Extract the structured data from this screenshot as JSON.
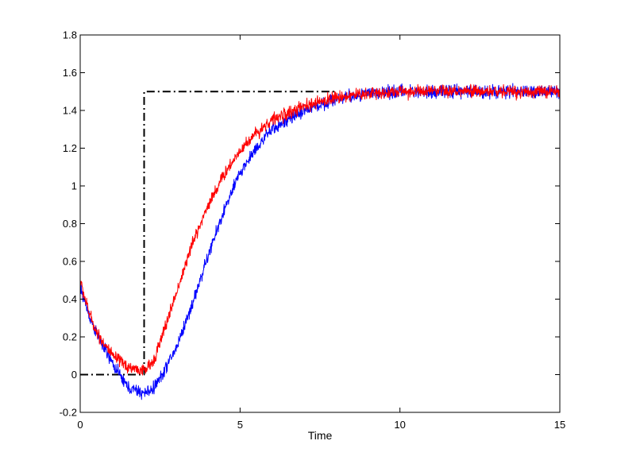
{
  "chart_data": {
    "type": "line",
    "title": "",
    "xlabel": "Time",
    "ylabel": "",
    "xlim": [
      0,
      15
    ],
    "ylim": [
      -0.2,
      1.8
    ],
    "xticks": [
      0,
      5,
      10,
      15
    ],
    "xtick_labels": [
      "0",
      "5",
      "10",
      "15"
    ],
    "yticks": [
      -0.2,
      0,
      0.2,
      0.4,
      0.6,
      0.8,
      1,
      1.2,
      1.4,
      1.6,
      1.8
    ],
    "ytick_labels": [
      "-0.2",
      "0",
      "0.2",
      "0.4",
      "0.6",
      "0.8",
      "1",
      "1.2",
      "1.4",
      "1.6",
      "1.8"
    ],
    "grid": false,
    "series": [
      {
        "color": "#000000",
        "style": "dash-dot",
        "x": [
          0,
          2,
          2,
          8
        ],
        "y": [
          0,
          0,
          1.5,
          1.5
        ]
      },
      {
        "color": "#0000ff",
        "style": "noisy",
        "noise_amplitude": 0.03,
        "x": [
          0,
          0.25,
          0.5,
          1.0,
          1.5,
          2.0,
          2.25,
          2.5,
          3.0,
          3.5,
          4.0,
          4.5,
          5.0,
          5.5,
          6.0,
          7.0,
          8.0,
          9.0,
          10.0,
          12.0,
          15.0
        ],
        "y": [
          0.46,
          0.33,
          0.22,
          0.06,
          -0.07,
          -0.1,
          -0.08,
          -0.02,
          0.14,
          0.37,
          0.63,
          0.87,
          1.07,
          1.2,
          1.3,
          1.4,
          1.46,
          1.49,
          1.5,
          1.5,
          1.5
        ]
      },
      {
        "color": "#ff0000",
        "style": "noisy",
        "noise_amplitude": 0.03,
        "x": [
          0,
          0.25,
          0.5,
          1.0,
          1.5,
          2.0,
          2.25,
          2.5,
          3.0,
          3.5,
          4.0,
          4.5,
          5.0,
          5.5,
          6.0,
          7.0,
          8.0,
          9.0,
          10.0,
          12.0,
          15.0
        ],
        "y": [
          0.5,
          0.34,
          0.23,
          0.1,
          0.04,
          0.02,
          0.06,
          0.17,
          0.43,
          0.69,
          0.9,
          1.06,
          1.19,
          1.28,
          1.35,
          1.42,
          1.47,
          1.49,
          1.5,
          1.5,
          1.5
        ]
      }
    ]
  }
}
